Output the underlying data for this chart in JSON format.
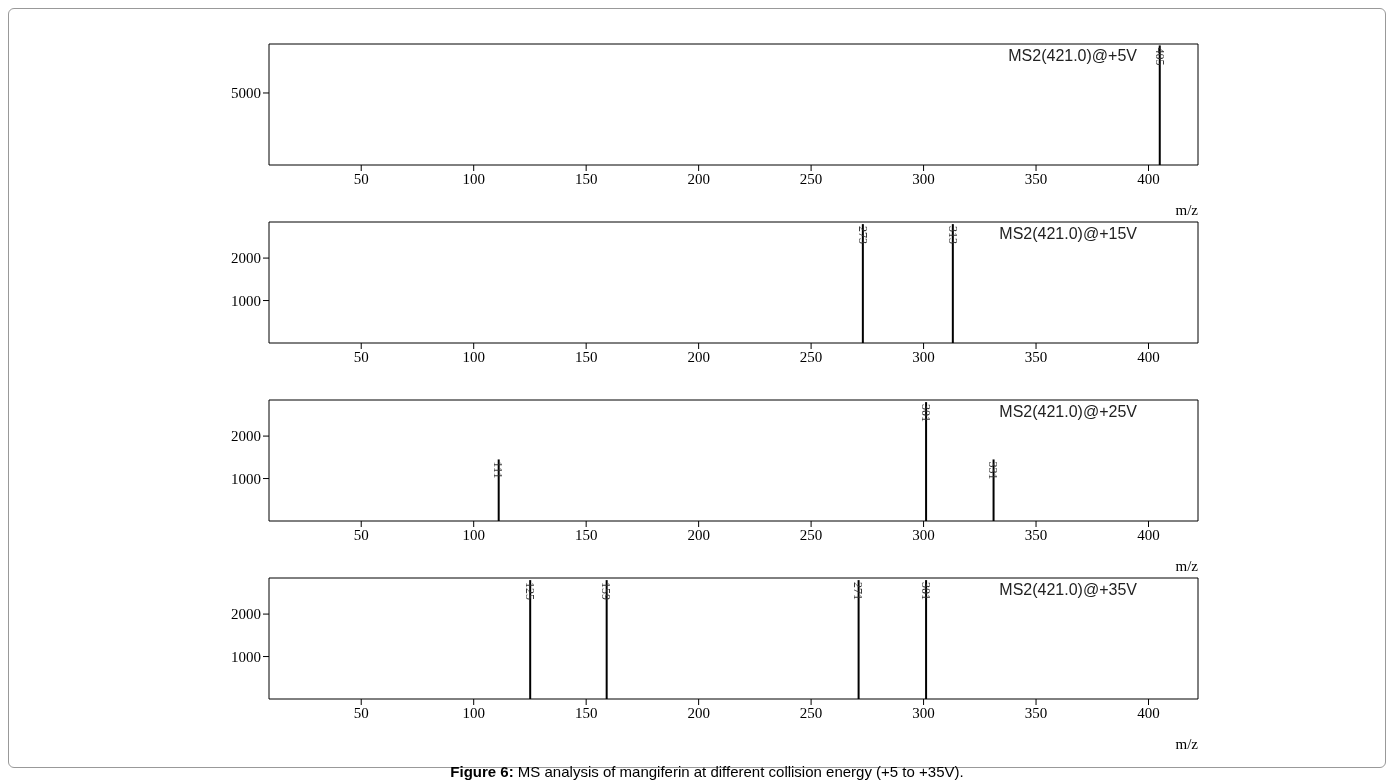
{
  "chart_data": [
    {
      "type": "bar",
      "xlabel": "m/z",
      "x": [
        405
      ],
      "values": [
        8300
      ],
      "color": "#000000",
      "xlim": [
        9,
        422
      ],
      "xticks": [
        50,
        100,
        150,
        200,
        250,
        300,
        350,
        400
      ],
      "ylim": [
        0,
        8400
      ],
      "yticks": [
        5000
      ],
      "annotations": [
        "MS2(421.0)@+5V",
        {
          "text": "405",
          "x": 405,
          "y": 8300
        }
      ]
    },
    {
      "type": "bar",
      "x": [
        273,
        313
      ],
      "values": [
        2800,
        2800
      ],
      "color": "#000000",
      "xlim": [
        9,
        422
      ],
      "xticks": [
        50,
        100,
        150,
        200,
        250,
        300,
        350,
        400
      ],
      "ylim": [
        0,
        2850
      ],
      "yticks": [
        1000,
        2000
      ],
      "annotations": [
        "MS2(421.0)@+15V",
        {
          "text": "273",
          "x": 273,
          "y": 2800
        },
        {
          "text": "313",
          "x": 313,
          "y": 2800
        }
      ]
    },
    {
      "type": "bar",
      "xlabel": "m/z",
      "x": [
        111,
        301,
        331
      ],
      "values": [
        1450,
        2800,
        1450
      ],
      "color": "#000000",
      "xlim": [
        9,
        422
      ],
      "xticks": [
        50,
        100,
        150,
        200,
        250,
        300,
        350,
        400
      ],
      "ylim": [
        0,
        2850
      ],
      "yticks": [
        1000,
        2000
      ],
      "annotations": [
        "MS2(421.0)@+25V",
        {
          "text": "111",
          "x": 111,
          "y": 1450
        },
        {
          "text": "301",
          "x": 301,
          "y": 2800
        },
        {
          "text": "331",
          "x": 331,
          "y": 1450
        }
      ]
    },
    {
      "type": "bar",
      "xlabel": "m/z",
      "x": [
        125,
        159,
        271,
        301
      ],
      "values": [
        2800,
        2800,
        2800,
        2800
      ],
      "color": "#000000",
      "xlim": [
        9,
        422
      ],
      "xticks": [
        50,
        100,
        150,
        200,
        250,
        300,
        350,
        400
      ],
      "ylim": [
        0,
        2850
      ],
      "yticks": [
        1000,
        2000
      ],
      "annotations": [
        "MS2(421.0)@+35V",
        {
          "text": "125",
          "x": 125,
          "y": 2800
        },
        {
          "text": "159",
          "x": 159,
          "y": 2800
        },
        {
          "text": "271",
          "x": 271,
          "y": 2800
        },
        {
          "text": "301",
          "x": 301,
          "y": 2800
        },
        "Figure 6: MS analysis of mangiferin at different collision energy (+5 to +35V)."
      ]
    }
  ]
}
